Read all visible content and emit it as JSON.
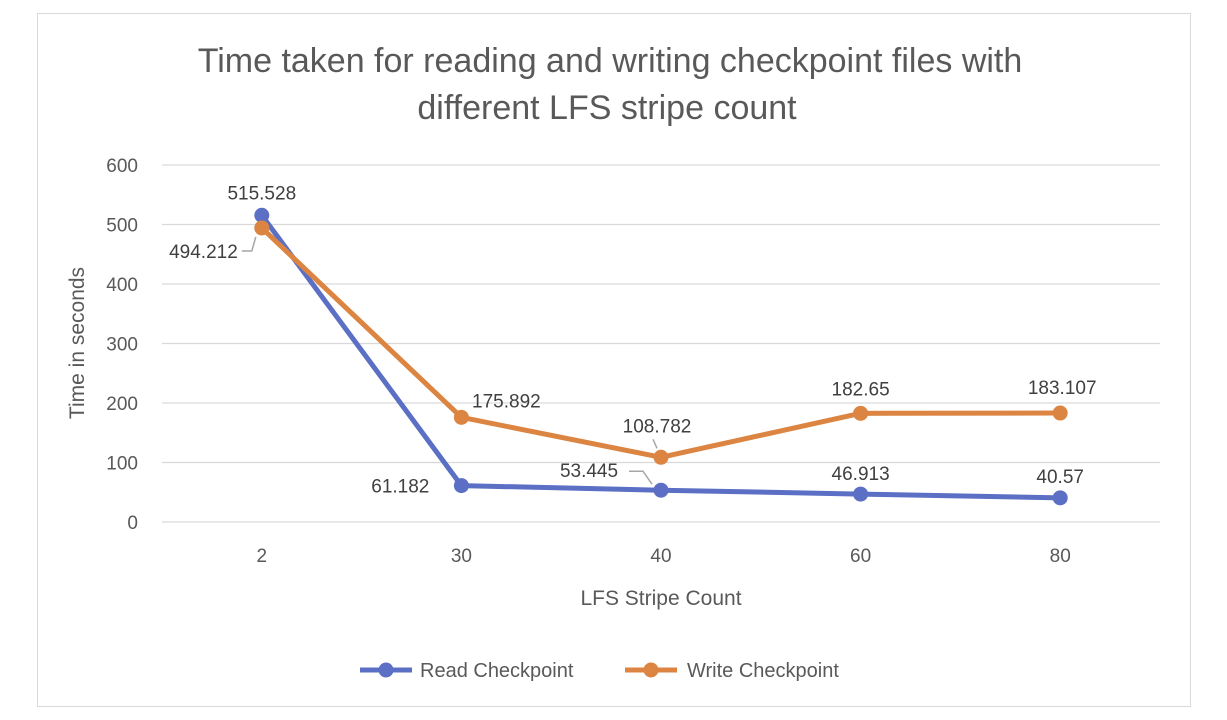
{
  "chart_data": {
    "type": "line",
    "title_lines": [
      "Time taken for reading and writing checkpoint files with",
      "different LFS stripe count"
    ],
    "xlabel": "LFS Stripe Count",
    "ylabel": "Time in seconds",
    "categories": [
      "2",
      "30",
      "40",
      "60",
      "80"
    ],
    "ylim": [
      0,
      600
    ],
    "yticks": [
      "0",
      "100",
      "200",
      "300",
      "400",
      "500",
      "600"
    ],
    "grid": true,
    "legend_position": "bottom",
    "series": [
      {
        "name": "Read Checkpoint",
        "color": "#5b6fc4",
        "values": [
          515.528,
          61.182,
          53.445,
          46.913,
          40.57
        ],
        "labels": [
          "515.528",
          "61.182",
          "53.445",
          "46.913",
          "40.57"
        ]
      },
      {
        "name": "Write Checkpoint",
        "color": "#dc8441",
        "values": [
          494.212,
          175.892,
          108.782,
          182.65,
          183.107
        ],
        "labels": [
          "494.212",
          "175.892",
          "108.782",
          "182.65",
          "183.107"
        ]
      }
    ]
  }
}
